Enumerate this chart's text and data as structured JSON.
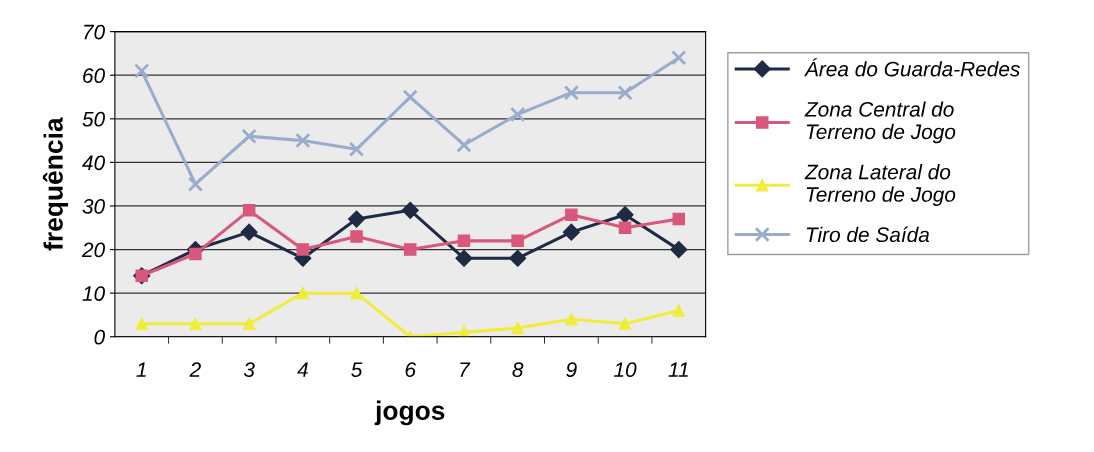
{
  "chart_data": {
    "type": "line",
    "xlabel": "jogos",
    "ylabel": "frequência",
    "categories": [
      "1",
      "2",
      "3",
      "4",
      "5",
      "6",
      "7",
      "8",
      "9",
      "10",
      "11"
    ],
    "ylim": [
      0,
      70
    ],
    "yticks": [
      0,
      10,
      20,
      30,
      40,
      50,
      60,
      70
    ],
    "grid": "y",
    "legend": "right",
    "series": [
      {
        "name": "Área do Guarda-Redes",
        "color": "#1f2a44",
        "marker": "diamond",
        "values": [
          14,
          20,
          24,
          18,
          27,
          29,
          18,
          18,
          24,
          28,
          20
        ]
      },
      {
        "name": "Zona Central do Terreno de Jogo",
        "color": "#d9577a",
        "marker": "square",
        "values": [
          14,
          19,
          29,
          20,
          23,
          20,
          22,
          22,
          28,
          25,
          27
        ]
      },
      {
        "name": "Zona Lateral do Terreno de Jogo",
        "color": "#f0ec3c",
        "marker": "triangle",
        "values": [
          3,
          3,
          3,
          10,
          10,
          0,
          1,
          2,
          4,
          3,
          6
        ]
      },
      {
        "name": "Tiro de Saída",
        "color": "#9aaccc",
        "marker": "cross",
        "values": [
          61,
          35,
          46,
          45,
          43,
          55,
          44,
          51,
          56,
          56,
          64
        ]
      }
    ]
  }
}
